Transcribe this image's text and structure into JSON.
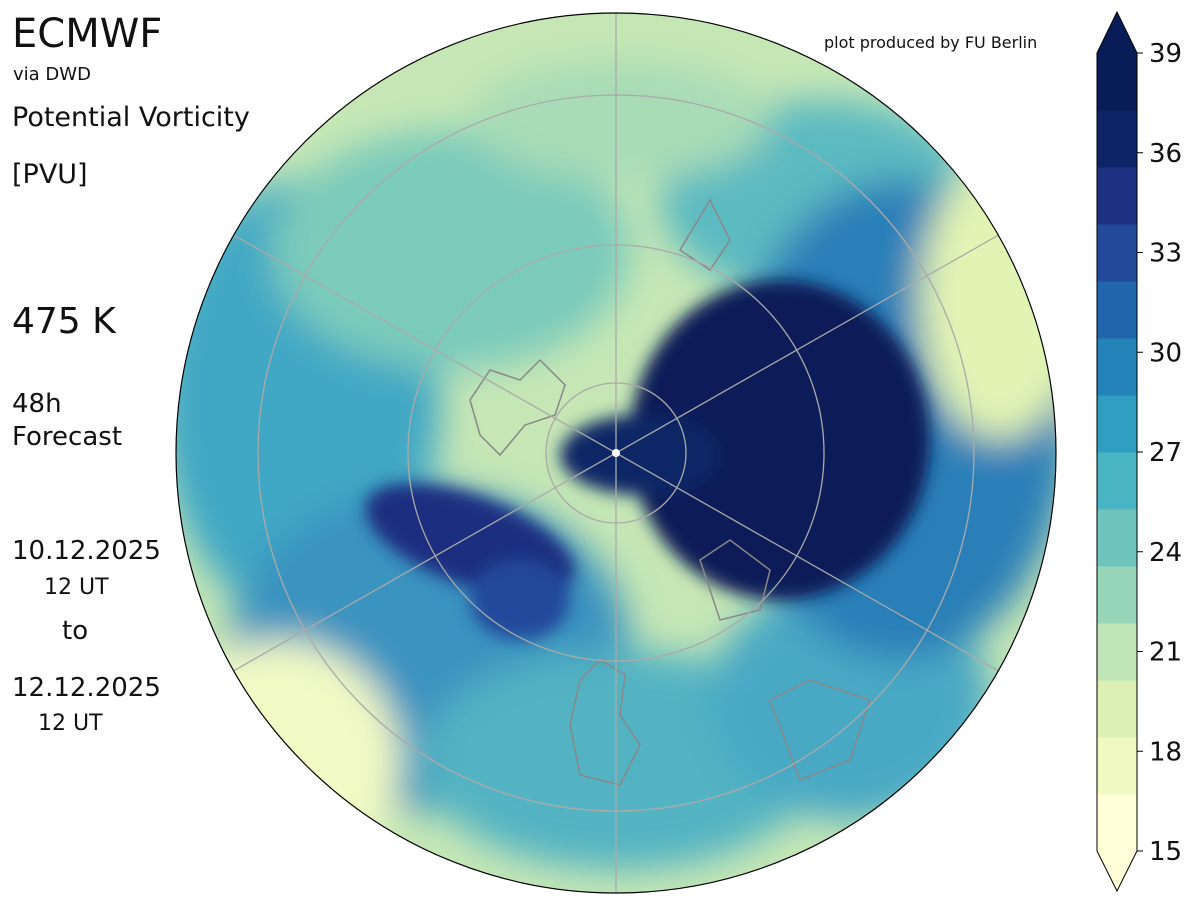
{
  "header": {
    "title": "ECMWF",
    "source": "via DWD",
    "variable": "Potential Vorticity",
    "unit": "[PVU]",
    "level": "475 K",
    "lead": [
      "48h",
      "Forecast"
    ],
    "start_date": "10.12.2025",
    "start_time": "12 UT",
    "separator": "to",
    "end_date": "12.12.2025",
    "end_time": "12 UT",
    "credit": "plot produced by FU Berlin"
  },
  "colorbar": {
    "lim": [
      15,
      39
    ],
    "ticks": [
      15,
      18,
      21,
      24,
      27,
      30,
      33,
      36,
      39
    ],
    "colors": [
      "#ffffd9",
      "#f0f9c0",
      "#dcf0b3",
      "#bfe5b6",
      "#97d6b9",
      "#6ec4bc",
      "#49b5c3",
      "#2f9ec1",
      "#2383b9",
      "#2166ac",
      "#23499b",
      "#1d2f80",
      "#0d2566",
      "#081d58"
    ]
  }
}
